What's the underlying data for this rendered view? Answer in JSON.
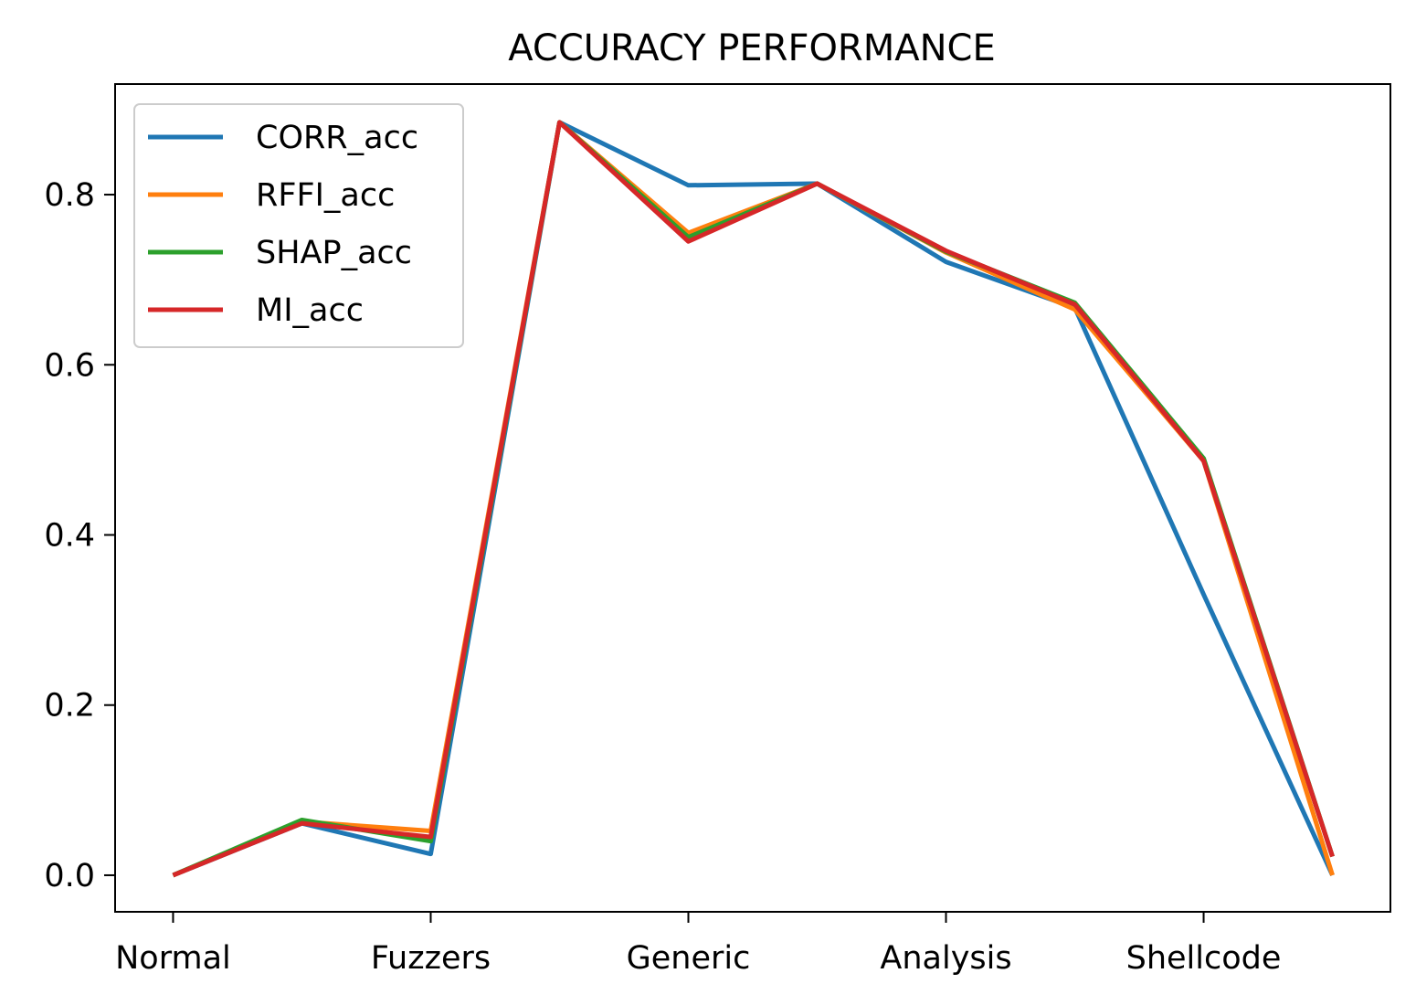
{
  "chart_data": {
    "type": "line",
    "title": "ACCURACY PERFORMANCE",
    "xlabel": "",
    "ylabel": "",
    "x": [
      0,
      1,
      2,
      3,
      4,
      5,
      6,
      7,
      8,
      9
    ],
    "xticks": [
      {
        "value": 0,
        "label": "Normal"
      },
      {
        "value": 2,
        "label": "Fuzzers"
      },
      {
        "value": 4,
        "label": "Generic"
      },
      {
        "value": 6,
        "label": "Analysis"
      },
      {
        "value": 8,
        "label": "Shellcode"
      }
    ],
    "yticks": [
      {
        "value": 0.0,
        "label": "0.0"
      },
      {
        "value": 0.2,
        "label": "0.2"
      },
      {
        "value": 0.4,
        "label": "0.4"
      },
      {
        "value": 0.6,
        "label": "0.6"
      },
      {
        "value": 0.8,
        "label": "0.8"
      }
    ],
    "xlim": [
      -0.45,
      9.45
    ],
    "ylim": [
      -0.043,
      0.93
    ],
    "grid": false,
    "legend_position": "upper-left",
    "series": [
      {
        "name": "CORR_acc",
        "color": "#1f77b4",
        "values": [
          0.0,
          0.061,
          0.025,
          0.885,
          0.811,
          0.813,
          0.721,
          0.667,
          0.33,
          0.0
        ]
      },
      {
        "name": "RFFI_acc",
        "color": "#ff7f0e",
        "values": [
          0.0,
          0.063,
          0.052,
          0.885,
          0.755,
          0.813,
          0.732,
          0.665,
          0.487,
          0.0
        ]
      },
      {
        "name": "SHAP_acc",
        "color": "#2ca02c",
        "values": [
          0.0,
          0.065,
          0.04,
          0.885,
          0.75,
          0.813,
          0.733,
          0.673,
          0.49,
          0.022
        ]
      },
      {
        "name": "MI_acc",
        "color": "#d62728",
        "values": [
          0.0,
          0.061,
          0.045,
          0.885,
          0.745,
          0.813,
          0.734,
          0.671,
          0.487,
          0.022
        ]
      }
    ]
  }
}
